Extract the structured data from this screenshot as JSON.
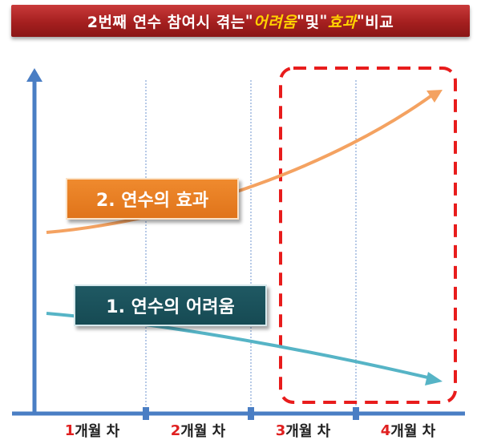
{
  "title": {
    "prefix": "2번째 연수 참여시 겪는 ",
    "open_quote": "\"",
    "highlight1": "어려움",
    "close_quote": "\"",
    "mid": " 및 ",
    "highlight2": "효과",
    "suffix": " 비교"
  },
  "callouts": {
    "effect": "2. 연수의 효과",
    "difficulty": "1. 연수의 어려움"
  },
  "months": [
    {
      "num": "1",
      "label": "개월 차"
    },
    {
      "num": "2",
      "label": "개월 차"
    },
    {
      "num": "3",
      "label": "개월 차"
    },
    {
      "num": "4",
      "label": "개월 차"
    }
  ],
  "colors": {
    "axis": "#4a7ec4",
    "effect_curve": "#f4a261",
    "difficulty_curve": "#56b4c6",
    "highlight_box": "#e81c1c",
    "title_bg": "#a51f1f",
    "title_highlight": "#ffd200"
  }
}
